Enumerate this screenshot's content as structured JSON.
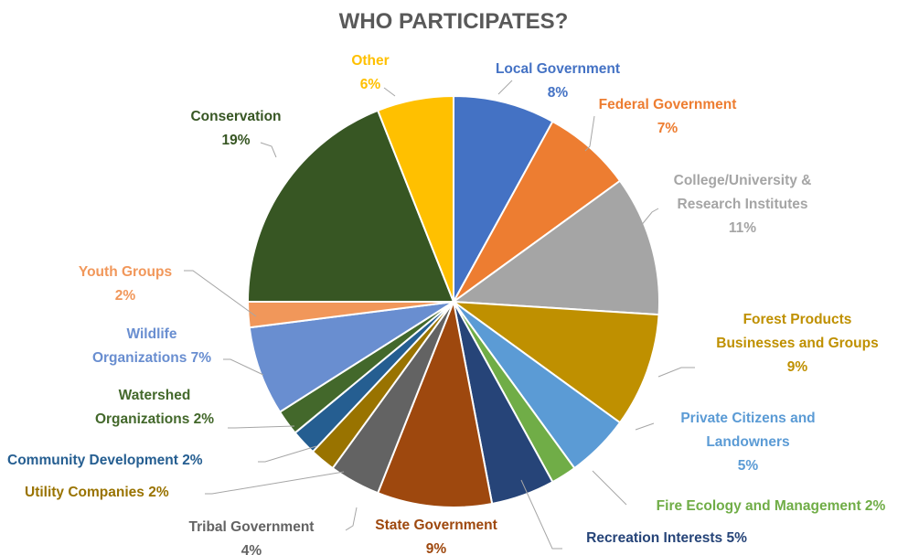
{
  "chart_data": {
    "type": "pie",
    "title": "WHO PARTICIPATES?",
    "unit": "%",
    "slices": [
      {
        "name": "Local Government",
        "value": 8,
        "color": "#4472C4",
        "label_lines": [
          "Local Government",
          "8%"
        ]
      },
      {
        "name": "Federal Government",
        "value": 7,
        "color": "#ED7D31",
        "label_lines": [
          "Federal Government",
          "7%"
        ]
      },
      {
        "name": "College/University & Research Institutes",
        "value": 11,
        "color": "#A5A5A5",
        "label_lines": [
          "College/University &",
          "Research Institutes",
          "11%"
        ]
      },
      {
        "name": "Forest Products Businesses and Groups",
        "value": 9,
        "color": "#BF9000",
        "label_lines": [
          "Forest Products",
          "Businesses and Groups",
          "9%"
        ]
      },
      {
        "name": "Private Citizens and Landowners",
        "value": 5,
        "color": "#5B9BD5",
        "label_lines": [
          "Private Citizens and",
          "Landowners",
          "5%"
        ]
      },
      {
        "name": "Fire Ecology and Management",
        "value": 2,
        "color": "#70AD47",
        "label_lines": [
          "Fire Ecology and Management 2%"
        ]
      },
      {
        "name": "Recreation Interests",
        "value": 5,
        "color": "#264478",
        "label_lines": [
          "Recreation Interests 5%"
        ]
      },
      {
        "name": "State Government",
        "value": 9,
        "color": "#9E480E",
        "label_lines": [
          "State Government",
          "9%"
        ]
      },
      {
        "name": "Tribal Government",
        "value": 4,
        "color": "#636363",
        "label_lines": [
          "Tribal Government",
          "4%"
        ]
      },
      {
        "name": "Utility Companies",
        "value": 2,
        "color": "#997300",
        "label_lines": [
          "Utility Companies 2%"
        ]
      },
      {
        "name": "Community Development",
        "value": 2,
        "color": "#255E91",
        "label_lines": [
          "Community Development 2%"
        ]
      },
      {
        "name": "Watershed Organizations",
        "value": 2,
        "color": "#43682B",
        "label_lines": [
          "Watershed",
          "Organizations 2%"
        ]
      },
      {
        "name": "Wildlife Organizations",
        "value": 7,
        "color": "#698ED0",
        "label_lines": [
          "Wildlife",
          "Organizations 7%"
        ]
      },
      {
        "name": "Youth Groups",
        "value": 2,
        "color": "#F1975A",
        "label_lines": [
          "Youth Groups",
          "2%"
        ]
      },
      {
        "name": "Conservation",
        "value": 19,
        "color": "#375623",
        "label_lines": [
          "Conservation",
          "19%"
        ]
      },
      {
        "name": "Other",
        "value": 6,
        "color": "#FFC000",
        "label_lines": [
          "Other",
          "6%"
        ]
      }
    ]
  }
}
